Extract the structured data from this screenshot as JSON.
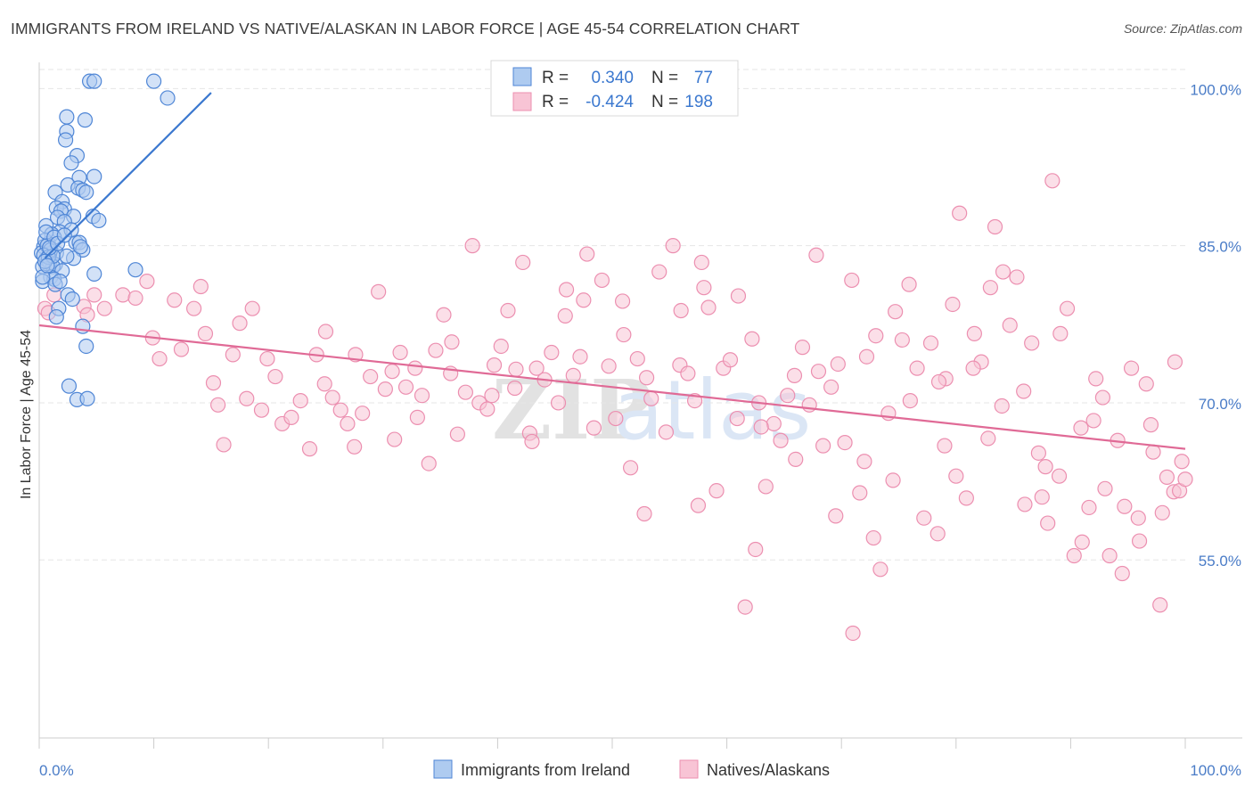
{
  "title": "IMMIGRANTS FROM IRELAND VS NATIVE/ALASKAN IN LABOR FORCE | AGE 45-54 CORRELATION CHART",
  "source": "Source: ZipAtlas.com",
  "watermark": {
    "part1": "ZIP",
    "part2": "atlas"
  },
  "colors": {
    "blue": "#3b78cf",
    "blue_fill": "#aecbf0",
    "blue_stroke": "#4f86d6",
    "pink": "#e06a96",
    "pink_fill": "#f8c4d5",
    "pink_stroke": "#ec8fb0",
    "grid": "#e6e6e6",
    "axis": "#cccccc",
    "tick_text": "#4a7cc7"
  },
  "stats_legend": {
    "r_label": "R =",
    "n_label": "N =",
    "rows": [
      {
        "series": "Immigrants from Ireland",
        "r": "0.340",
        "n": "77"
      },
      {
        "series": "Natives/Alaskans",
        "r": "-0.424",
        "n": "198"
      }
    ]
  },
  "chart_data": {
    "type": "scatter",
    "title": "IMMIGRANTS FROM IRELAND VS NATIVE/ALASKAN IN LABOR FORCE | AGE 45-54 CORRELATION CHART",
    "xlabel": "",
    "ylabel": "In Labor Force | Age 45-54",
    "xlim": [
      0,
      100
    ],
    "ylim": [
      38,
      102.5
    ],
    "x_tick_labels": [
      "0.0%",
      "100.0%"
    ],
    "y_ticks": [
      55,
      70,
      85,
      100
    ],
    "y_tick_labels": [
      "55.0%",
      "70.0%",
      "85.0%",
      "100.0%"
    ],
    "grid": true,
    "legend": [
      "Immigrants from Ireland",
      "Natives/Alaskans"
    ],
    "series": [
      {
        "name": "Immigrants from Ireland",
        "color": "blue",
        "trend": {
          "x": [
            0.5,
            15.0
          ],
          "y": [
            83.8,
            99.6
          ]
        },
        "points": [
          [
            4.4,
            100.7
          ],
          [
            4.8,
            100.7
          ],
          [
            10.0,
            100.7
          ],
          [
            11.2,
            99.1
          ],
          [
            2.4,
            97.3
          ],
          [
            4.0,
            97.0
          ],
          [
            2.4,
            95.9
          ],
          [
            2.3,
            95.1
          ],
          [
            3.3,
            93.6
          ],
          [
            2.8,
            92.9
          ],
          [
            4.8,
            91.6
          ],
          [
            3.5,
            91.5
          ],
          [
            2.5,
            90.8
          ],
          [
            3.4,
            90.5
          ],
          [
            3.8,
            90.3
          ],
          [
            1.4,
            90.1
          ],
          [
            4.1,
            90.1
          ],
          [
            2.0,
            89.2
          ],
          [
            1.5,
            88.6
          ],
          [
            2.2,
            88.5
          ],
          [
            1.9,
            88.3
          ],
          [
            3.0,
            87.8
          ],
          [
            4.7,
            87.8
          ],
          [
            1.6,
            87.7
          ],
          [
            5.2,
            87.4
          ],
          [
            2.2,
            87.3
          ],
          [
            0.6,
            86.9
          ],
          [
            1.8,
            86.3
          ],
          [
            1.1,
            86.1
          ],
          [
            3.2,
            85.3
          ],
          [
            3.5,
            85.3
          ],
          [
            0.8,
            85.2
          ],
          [
            0.4,
            84.9
          ],
          [
            3.8,
            84.6
          ],
          [
            0.2,
            84.3
          ],
          [
            1.5,
            84.3
          ],
          [
            0.9,
            84.2
          ],
          [
            3.0,
            83.8
          ],
          [
            0.6,
            83.7
          ],
          [
            0.9,
            83.4
          ],
          [
            1.4,
            83.2
          ],
          [
            1.2,
            83.0
          ],
          [
            0.3,
            83.0
          ],
          [
            2.0,
            82.6
          ],
          [
            8.4,
            82.7
          ],
          [
            4.8,
            82.3
          ],
          [
            1.0,
            82.0
          ],
          [
            1.3,
            81.8
          ],
          [
            0.3,
            81.6
          ],
          [
            1.4,
            81.3
          ],
          [
            2.5,
            80.3
          ],
          [
            2.9,
            79.9
          ],
          [
            1.7,
            79.0
          ],
          [
            1.5,
            78.2
          ],
          [
            3.8,
            77.3
          ],
          [
            4.1,
            75.4
          ],
          [
            2.6,
            71.6
          ],
          [
            3.3,
            70.3
          ],
          [
            4.2,
            70.4
          ],
          [
            0.5,
            85.5
          ],
          [
            0.7,
            85.0
          ],
          [
            1.0,
            84.6
          ],
          [
            0.4,
            84.1
          ],
          [
            0.8,
            83.9
          ],
          [
            1.2,
            84.0
          ],
          [
            0.5,
            83.5
          ],
          [
            2.4,
            84.0
          ],
          [
            1.8,
            81.6
          ],
          [
            0.6,
            86.3
          ],
          [
            1.3,
            85.8
          ],
          [
            2.8,
            86.5
          ],
          [
            0.9,
            84.8
          ],
          [
            1.6,
            85.2
          ],
          [
            0.3,
            82.0
          ],
          [
            3.6,
            84.9
          ],
          [
            0.7,
            83.1
          ],
          [
            2.2,
            86.0
          ]
        ]
      },
      {
        "name": "Natives/Alaskans",
        "color": "pink",
        "trend": {
          "x": [
            0,
            100
          ],
          "y": [
            77.4,
            65.6
          ]
        },
        "points": [
          [
            1.3,
            80.3
          ],
          [
            0.5,
            79.0
          ],
          [
            0.8,
            78.6
          ],
          [
            3.9,
            79.2
          ],
          [
            4.2,
            78.4
          ],
          [
            4.8,
            80.3
          ],
          [
            5.7,
            79.0
          ],
          [
            7.3,
            80.3
          ],
          [
            8.4,
            80.0
          ],
          [
            9.4,
            81.6
          ],
          [
            9.9,
            76.2
          ],
          [
            10.5,
            74.2
          ],
          [
            11.8,
            79.8
          ],
          [
            12.4,
            75.1
          ],
          [
            13.5,
            79.0
          ],
          [
            14.1,
            81.1
          ],
          [
            14.5,
            76.6
          ],
          [
            15.2,
            71.9
          ],
          [
            15.6,
            69.8
          ],
          [
            16.1,
            66.0
          ],
          [
            16.9,
            74.6
          ],
          [
            17.5,
            77.6
          ],
          [
            18.1,
            70.4
          ],
          [
            18.6,
            79.0
          ],
          [
            19.4,
            69.3
          ],
          [
            19.9,
            74.2
          ],
          [
            20.6,
            72.5
          ],
          [
            21.2,
            68.0
          ],
          [
            22.0,
            68.6
          ],
          [
            22.8,
            70.2
          ],
          [
            23.6,
            65.6
          ],
          [
            24.2,
            74.6
          ],
          [
            24.9,
            71.8
          ],
          [
            25.6,
            70.5
          ],
          [
            26.3,
            69.3
          ],
          [
            26.9,
            68.0
          ],
          [
            27.6,
            74.6
          ],
          [
            28.2,
            69.0
          ],
          [
            28.9,
            72.5
          ],
          [
            29.6,
            80.6
          ],
          [
            30.2,
            71.3
          ],
          [
            30.8,
            73.0
          ],
          [
            31.5,
            74.8
          ],
          [
            32.0,
            71.5
          ],
          [
            32.8,
            73.3
          ],
          [
            33.4,
            70.7
          ],
          [
            34.0,
            64.2
          ],
          [
            34.6,
            75.0
          ],
          [
            35.3,
            78.4
          ],
          [
            35.9,
            72.8
          ],
          [
            36.5,
            67.0
          ],
          [
            37.2,
            71.0
          ],
          [
            37.8,
            85.0
          ],
          [
            38.4,
            70.0
          ],
          [
            39.1,
            69.4
          ],
          [
            39.7,
            73.6
          ],
          [
            40.3,
            75.4
          ],
          [
            40.9,
            78.8
          ],
          [
            41.6,
            73.2
          ],
          [
            42.2,
            83.4
          ],
          [
            42.8,
            67.1
          ],
          [
            43.4,
            73.3
          ],
          [
            44.1,
            72.2
          ],
          [
            44.7,
            74.8
          ],
          [
            45.3,
            70.0
          ],
          [
            45.9,
            78.3
          ],
          [
            46.6,
            72.6
          ],
          [
            47.2,
            74.4
          ],
          [
            47.8,
            84.2
          ],
          [
            48.4,
            67.6
          ],
          [
            49.1,
            81.7
          ],
          [
            49.7,
            73.5
          ],
          [
            50.3,
            68.5
          ],
          [
            50.9,
            79.7
          ],
          [
            51.6,
            63.8
          ],
          [
            52.2,
            74.2
          ],
          [
            52.8,
            59.4
          ],
          [
            53.4,
            70.4
          ],
          [
            54.1,
            82.5
          ],
          [
            54.7,
            67.2
          ],
          [
            55.3,
            85.0
          ],
          [
            55.9,
            73.6
          ],
          [
            56.6,
            72.8
          ],
          [
            57.2,
            70.2
          ],
          [
            57.8,
            83.4
          ],
          [
            58.4,
            79.1
          ],
          [
            59.1,
            61.6
          ],
          [
            59.7,
            73.3
          ],
          [
            60.3,
            74.1
          ],
          [
            60.9,
            68.5
          ],
          [
            61.6,
            50.5
          ],
          [
            62.2,
            76.1
          ],
          [
            62.8,
            70.0
          ],
          [
            63.4,
            62.0
          ],
          [
            64.1,
            68.0
          ],
          [
            64.7,
            66.4
          ],
          [
            65.3,
            70.7
          ],
          [
            65.9,
            72.6
          ],
          [
            66.6,
            75.3
          ],
          [
            67.2,
            69.8
          ],
          [
            67.8,
            84.1
          ],
          [
            68.4,
            65.9
          ],
          [
            69.1,
            71.5
          ],
          [
            69.7,
            73.7
          ],
          [
            70.3,
            66.2
          ],
          [
            70.9,
            81.7
          ],
          [
            71.6,
            61.4
          ],
          [
            72.2,
            74.4
          ],
          [
            72.8,
            57.1
          ],
          [
            73.4,
            54.1
          ],
          [
            74.1,
            69.0
          ],
          [
            74.7,
            78.7
          ],
          [
            75.3,
            76.0
          ],
          [
            75.9,
            81.3
          ],
          [
            76.6,
            73.3
          ],
          [
            77.2,
            59.0
          ],
          [
            77.8,
            75.7
          ],
          [
            78.4,
            57.5
          ],
          [
            79.1,
            72.3
          ],
          [
            79.7,
            79.4
          ],
          [
            80.3,
            88.1
          ],
          [
            80.9,
            60.9
          ],
          [
            81.6,
            76.6
          ],
          [
            82.2,
            73.9
          ],
          [
            82.8,
            66.6
          ],
          [
            83.4,
            86.8
          ],
          [
            84.1,
            82.5
          ],
          [
            84.7,
            77.4
          ],
          [
            85.3,
            82.0
          ],
          [
            85.9,
            71.1
          ],
          [
            86.6,
            75.7
          ],
          [
            87.2,
            65.2
          ],
          [
            87.8,
            63.9
          ],
          [
            88.4,
            91.2
          ],
          [
            89.1,
            76.6
          ],
          [
            89.7,
            79.0
          ],
          [
            90.3,
            55.4
          ],
          [
            90.9,
            67.6
          ],
          [
            91.6,
            60.0
          ],
          [
            92.2,
            72.3
          ],
          [
            92.8,
            70.5
          ],
          [
            93.4,
            55.4
          ],
          [
            94.1,
            66.4
          ],
          [
            94.7,
            60.1
          ],
          [
            95.3,
            73.3
          ],
          [
            95.9,
            59.0
          ],
          [
            96.6,
            71.8
          ],
          [
            97.2,
            65.3
          ],
          [
            97.8,
            50.7
          ],
          [
            98.4,
            62.9
          ],
          [
            99.1,
            73.9
          ],
          [
            99.7,
            64.4
          ],
          [
            36.0,
            75.8
          ],
          [
            46.0,
            80.8
          ],
          [
            53.0,
            72.4
          ],
          [
            58.0,
            81.0
          ],
          [
            63.0,
            67.7
          ],
          [
            68.0,
            73.0
          ],
          [
            72.0,
            64.4
          ],
          [
            76.0,
            70.2
          ],
          [
            80.0,
            63.0
          ],
          [
            84.0,
            69.7
          ],
          [
            88.0,
            58.5
          ],
          [
            92.0,
            68.3
          ],
          [
            96.0,
            56.8
          ],
          [
            99.0,
            61.5
          ],
          [
            25.0,
            76.8
          ],
          [
            33.0,
            68.6
          ],
          [
            43.0,
            66.3
          ],
          [
            51.0,
            76.5
          ],
          [
            56.0,
            78.8
          ],
          [
            61.0,
            80.2
          ],
          [
            66.0,
            64.6
          ],
          [
            71.0,
            48.0
          ],
          [
            74.5,
            62.6
          ],
          [
            79.0,
            65.9
          ],
          [
            83.0,
            81.0
          ],
          [
            86.0,
            60.3
          ],
          [
            89.0,
            63.0
          ],
          [
            93.0,
            61.8
          ],
          [
            97.0,
            67.9
          ],
          [
            99.5,
            61.6
          ],
          [
            27.5,
            65.8
          ],
          [
            31.0,
            66.5
          ],
          [
            39.5,
            70.7
          ],
          [
            41.5,
            71.4
          ],
          [
            47.5,
            79.8
          ],
          [
            57.5,
            60.2
          ],
          [
            62.5,
            56.0
          ],
          [
            69.5,
            59.2
          ],
          [
            73.0,
            76.4
          ],
          [
            78.5,
            72.0
          ],
          [
            81.5,
            73.3
          ],
          [
            87.5,
            61.0
          ],
          [
            91.0,
            56.7
          ],
          [
            94.5,
            53.7
          ],
          [
            98.0,
            59.5
          ],
          [
            100.0,
            62.7
          ]
        ]
      }
    ]
  }
}
